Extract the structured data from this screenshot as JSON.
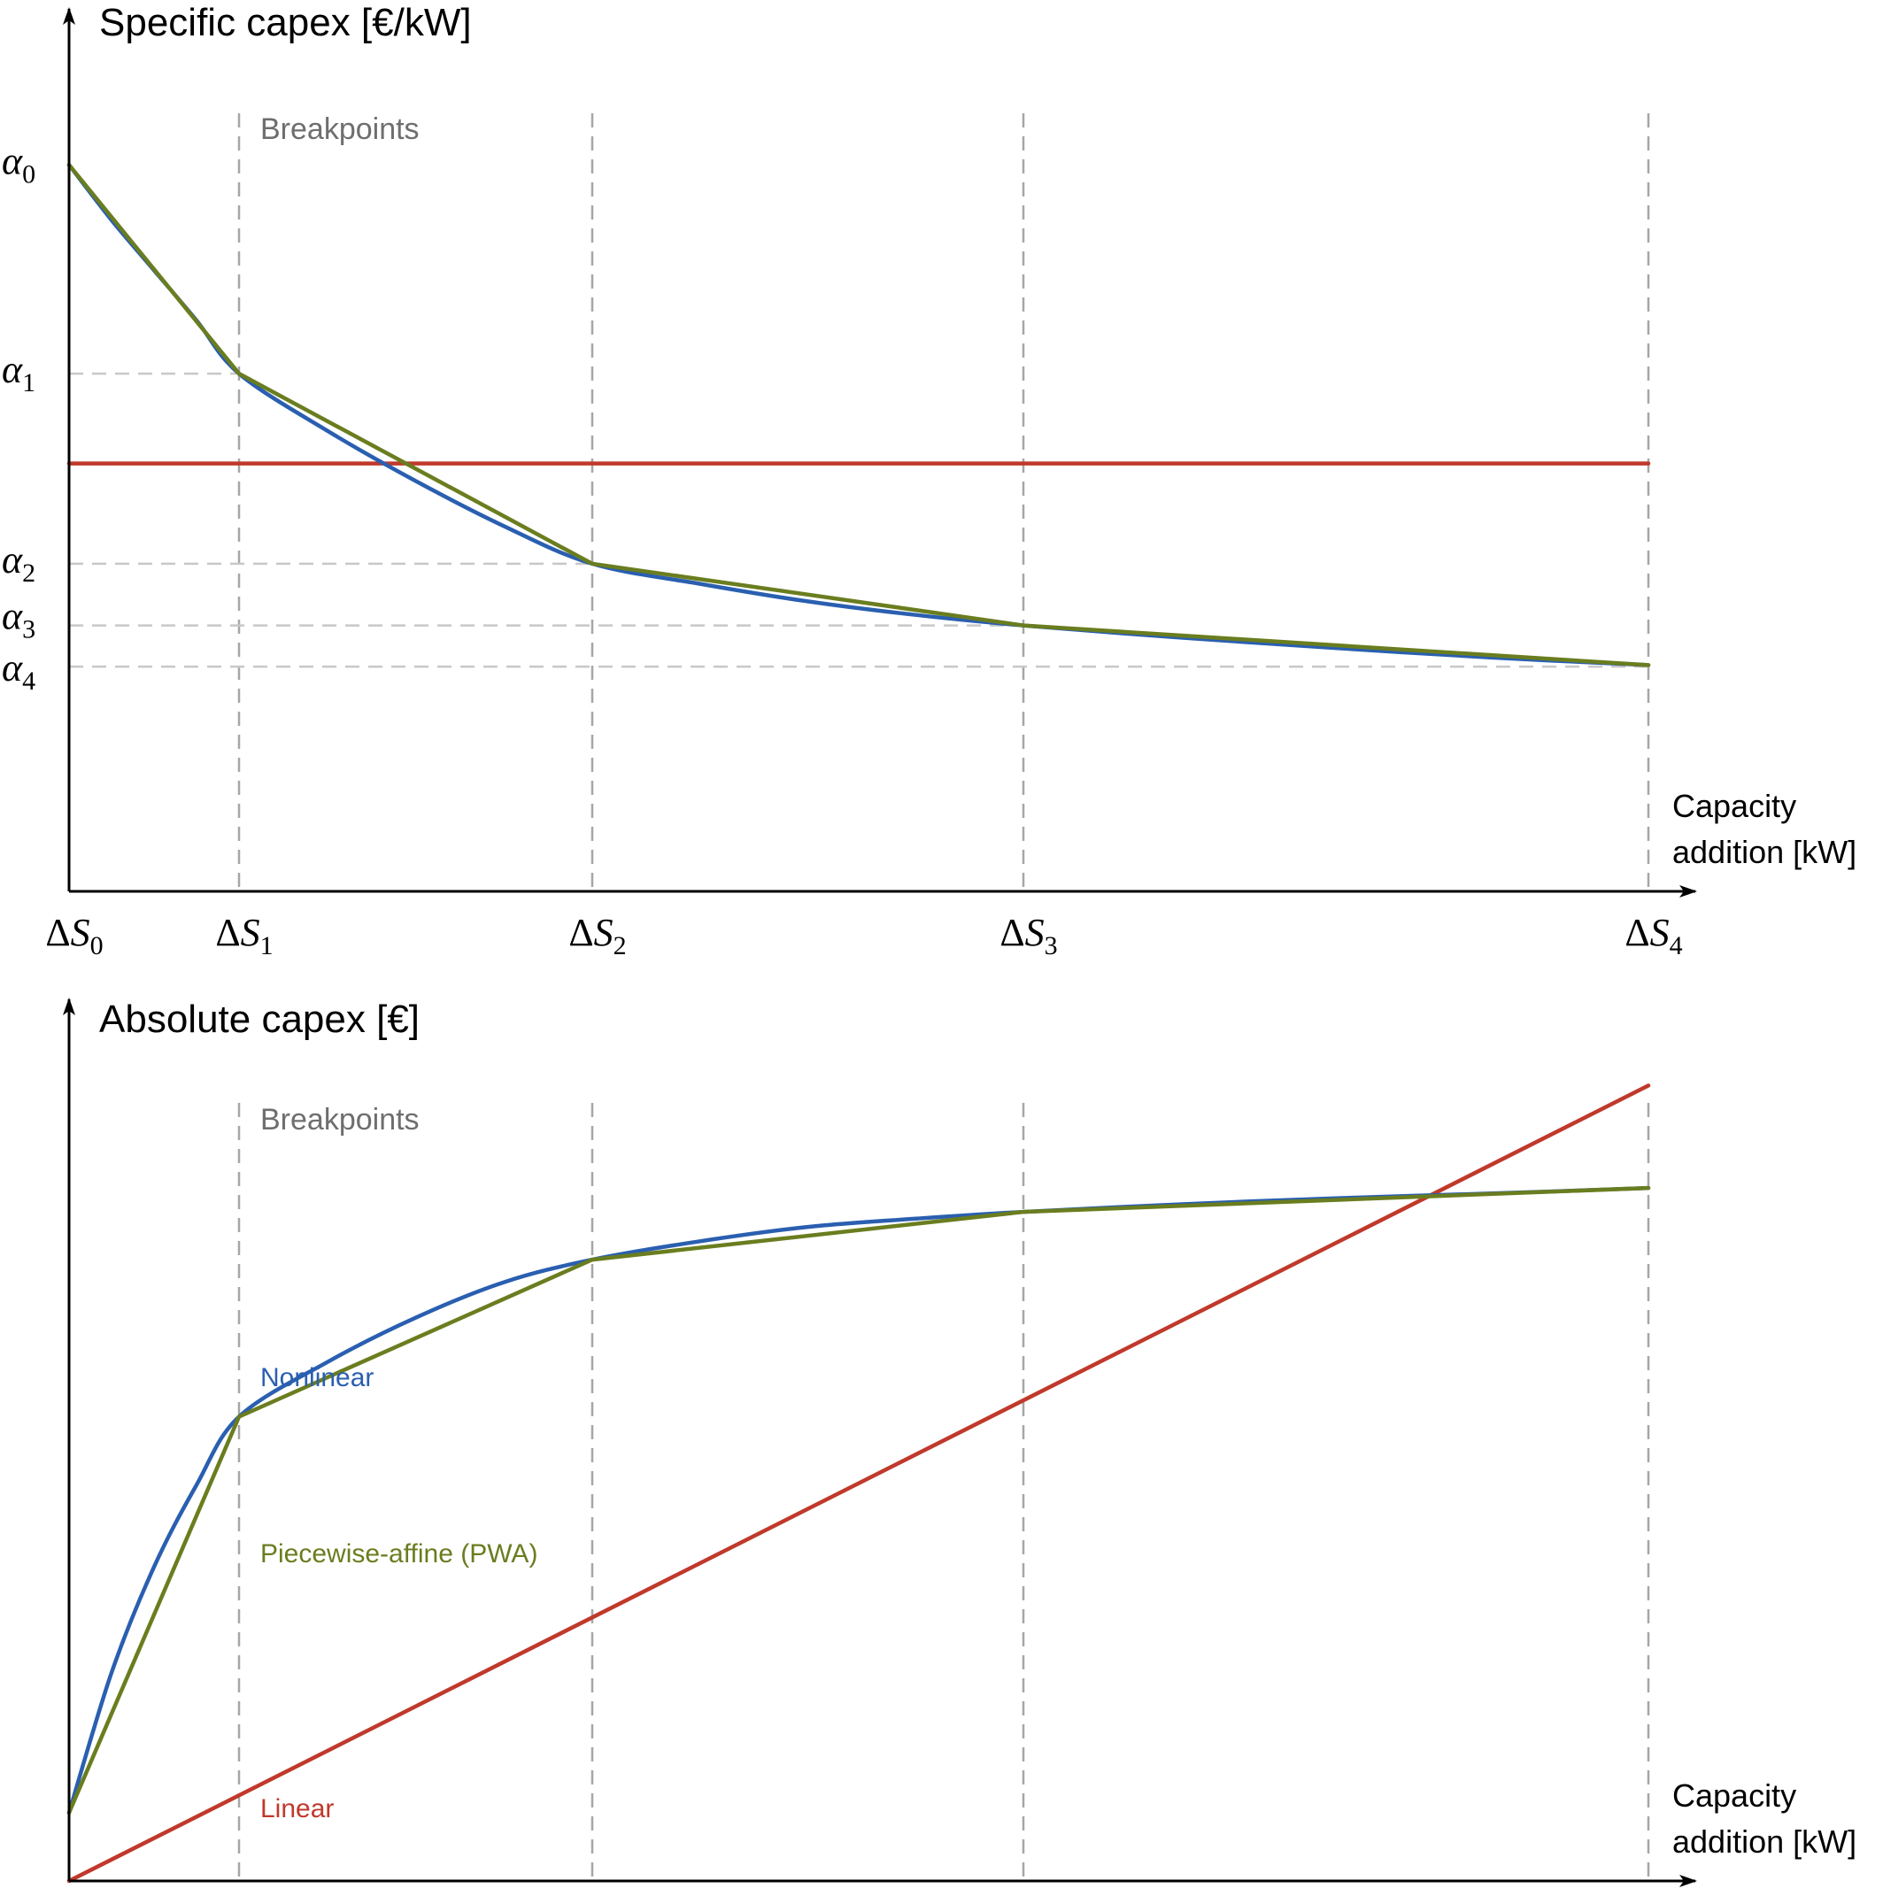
{
  "chart_data": [
    {
      "type": "line",
      "title": "Specific capex [€/kW]",
      "ylabel": "Specific capex [€/kW]",
      "xlabel": "Capacity addition [kW]",
      "xlabel_lines": [
        "Capacity",
        "addition [kW]"
      ],
      "breakpoints_label": "Breakpoints",
      "breakpoints": [
        0,
        1,
        2,
        3,
        4
      ],
      "x_tick_labels": [
        {
          "base": "ΔS",
          "sub": "0"
        },
        {
          "base": "ΔS",
          "sub": "1"
        },
        {
          "base": "ΔS",
          "sub": "2"
        },
        {
          "base": "ΔS",
          "sub": "3"
        },
        {
          "base": "ΔS",
          "sub": "4"
        }
      ],
      "y_tick_labels": [
        {
          "base": "α",
          "sub": "0"
        },
        {
          "base": "α",
          "sub": "1"
        },
        {
          "base": "α",
          "sub": "2"
        },
        {
          "base": "α",
          "sub": "3"
        },
        {
          "base": "α",
          "sub": "4"
        }
      ],
      "alpha_values": [
        1.0,
        0.584,
        0.205,
        0.082,
        0.0
      ],
      "ylim": [
        -0.448,
        1.02
      ],
      "xlim": [
        0,
        4
      ],
      "series": [
        {
          "key": "nonlinear",
          "color": "#2a5fb0",
          "x": [
            0,
            0.25,
            0.5,
            0.75,
            1,
            1.25,
            1.5,
            1.75,
            2,
            2.25,
            2.5,
            2.75,
            3,
            3.25,
            3.5,
            3.75,
            4
          ],
          "y": [
            1.0,
            0.89,
            0.79,
            0.69,
            0.584,
            0.47,
            0.37,
            0.28,
            0.205,
            0.165,
            0.13,
            0.103,
            0.082,
            0.058,
            0.037,
            0.018,
            0.003
          ]
        },
        {
          "key": "pwa",
          "color": "#6a7d1f",
          "x": [
            0,
            1,
            2,
            3,
            4
          ],
          "y": [
            1.0,
            0.584,
            0.205,
            0.082,
            0.003
          ]
        },
        {
          "key": "linear",
          "color": "#c0392b",
          "x": [
            0,
            4
          ],
          "y": [
            0.405,
            0.405
          ]
        }
      ]
    },
    {
      "type": "line",
      "title": "Absolute capex [€]",
      "ylabel": "Absolute capex [€]",
      "xlabel": "Capacity addition [kW]",
      "xlabel_lines": [
        "Capacity",
        "addition [kW]"
      ],
      "breakpoints_label": "Breakpoints",
      "breakpoints": [
        0,
        1,
        2,
        3,
        4
      ],
      "ylim": [
        0,
        1.29
      ],
      "xlim": [
        0,
        4
      ],
      "series": [
        {
          "key": "nonlinear",
          "name": "Nonlinear",
          "color": "#2a5fb0",
          "x": [
            0,
            0.25,
            0.5,
            0.75,
            1,
            1.25,
            1.5,
            1.75,
            2,
            2.25,
            2.5,
            2.75,
            3,
            3.25,
            3.5,
            3.75,
            4
          ],
          "y": [
            0.1,
            0.305,
            0.46,
            0.58,
            0.68,
            0.76,
            0.825,
            0.877,
            0.91,
            0.937,
            0.958,
            0.97,
            0.98,
            0.991,
            1.0,
            1.007,
            1.015
          ]
        },
        {
          "key": "pwa",
          "name": "Piecewise-affine (PWA)",
          "color": "#6a7d1f",
          "x": [
            0,
            1,
            2,
            3,
            4
          ],
          "y": [
            0.1,
            0.68,
            0.91,
            0.98,
            1.015
          ]
        },
        {
          "key": "linear",
          "name": "Linear",
          "color": "#c0392b",
          "x": [
            0,
            4
          ],
          "y": [
            0.0,
            1.165
          ]
        }
      ]
    }
  ]
}
